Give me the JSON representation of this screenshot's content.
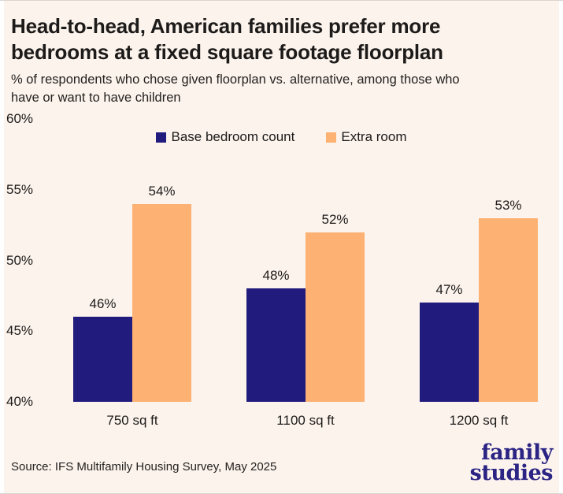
{
  "header": {
    "title": "Head-to-head, American families prefer more\nbedrooms at a fixed square footage floorplan",
    "subtitle": "% of respondents who chose given floorplan vs. alternative, among those who\nhave or want to have children"
  },
  "chart_data": {
    "type": "bar",
    "title": "Head-to-head, American families prefer more bedrooms at a fixed square footage floorplan",
    "subtitle": "% of respondents who chose given floorplan vs. alternative, among those who have or want to have children",
    "categories": [
      "750 sq ft",
      "1100 sq ft",
      "1200 sq ft"
    ],
    "series": [
      {
        "name": "Base bedroom count",
        "color": "#211b7e",
        "values": [
          46,
          48,
          47
        ]
      },
      {
        "name": "Extra room",
        "color": "#fdb173",
        "values": [
          54,
          52,
          53
        ]
      }
    ],
    "value_labels": [
      [
        "46%",
        "48%",
        "47%"
      ],
      [
        "54%",
        "52%",
        "53%"
      ]
    ],
    "ylim": [
      40,
      60
    ],
    "yticks": [
      {
        "value": 60,
        "label": "60%"
      },
      {
        "value": 55,
        "label": "55%"
      },
      {
        "value": 50,
        "label": "50%"
      },
      {
        "value": 45,
        "label": "45%"
      },
      {
        "value": 40,
        "label": "40%"
      }
    ],
    "grid": false,
    "legend_position": "top"
  },
  "footer": {
    "source": "Source: IFS Multifamily Housing Survey, May 2025",
    "logo_line1": "family",
    "logo_line2": "studies"
  },
  "colors": {
    "background": "#fbf3ec",
    "frame": "#ffffff",
    "base_series": "#211b7e",
    "extra_series": "#fdb173",
    "text": "#1d1b1a",
    "logo": "#2b2484"
  }
}
